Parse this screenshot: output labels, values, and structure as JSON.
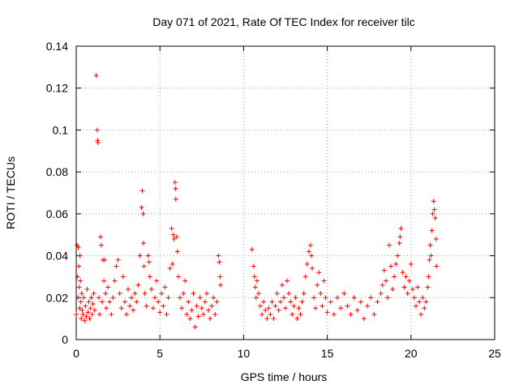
{
  "chart_data": {
    "type": "scatter",
    "title": "Day 071 of 2021, Rate Of TEC Index for receiver tilc",
    "xlabel": "GPS time / hours",
    "ylabel": "ROTI / TECUs",
    "xlim": [
      0,
      25
    ],
    "ylim": [
      0,
      0.14
    ],
    "x_ticks": [
      "0",
      "5",
      "10",
      "15",
      "20",
      "25"
    ],
    "y_ticks": [
      "0",
      "0.02",
      "0.04",
      "0.06",
      "0.08",
      "0.1",
      "0.12",
      "0.14"
    ],
    "x_tick_values": [
      0,
      5,
      10,
      15,
      20,
      25
    ],
    "y_tick_values": [
      0,
      0.02,
      0.04,
      0.06,
      0.08,
      0.1,
      0.12,
      0.14
    ],
    "grid": true,
    "marker": "plus",
    "color": "#ff0000",
    "series": [
      {
        "points": [
          [
            0.0,
            0.012
          ],
          [
            0.05,
            0.045
          ],
          [
            0.08,
            0.03
          ],
          [
            0.1,
            0.02
          ],
          [
            0.12,
            0.044
          ],
          [
            0.15,
            0.035
          ],
          [
            0.18,
            0.025
          ],
          [
            0.2,
            0.015
          ],
          [
            0.22,
            0.04
          ],
          [
            0.25,
            0.028
          ],
          [
            0.28,
            0.018
          ],
          [
            0.3,
            0.01
          ],
          [
            0.33,
            0.022
          ],
          [
            0.36,
            0.014
          ],
          [
            0.4,
            0.012
          ],
          [
            0.45,
            0.02
          ],
          [
            0.5,
            0.009
          ],
          [
            0.55,
            0.016
          ],
          [
            0.6,
            0.011
          ],
          [
            0.65,
            0.024
          ],
          [
            0.7,
            0.013
          ],
          [
            0.75,
            0.018
          ],
          [
            0.8,
            0.01
          ],
          [
            0.85,
            0.015
          ],
          [
            0.9,
            0.02
          ],
          [
            0.95,
            0.012
          ],
          [
            1.0,
            0.017
          ],
          [
            1.05,
            0.022
          ],
          [
            1.1,
            0.014
          ],
          [
            1.2,
            0.126
          ],
          [
            1.25,
            0.1
          ],
          [
            1.28,
            0.095
          ],
          [
            1.3,
            0.094
          ],
          [
            1.35,
            0.02
          ],
          [
            1.4,
            0.012
          ],
          [
            1.45,
            0.049
          ],
          [
            1.5,
            0.045
          ],
          [
            1.55,
            0.018
          ],
          [
            1.6,
            0.038
          ],
          [
            1.65,
            0.028
          ],
          [
            1.7,
            0.038
          ],
          [
            1.75,
            0.022
          ],
          [
            1.8,
            0.015
          ],
          [
            1.9,
            0.025
          ],
          [
            2.0,
            0.018
          ],
          [
            2.1,
            0.012
          ],
          [
            2.2,
            0.02
          ],
          [
            2.3,
            0.028
          ],
          [
            2.4,
            0.035
          ],
          [
            2.5,
            0.038
          ],
          [
            2.6,
            0.022
          ],
          [
            2.7,
            0.015
          ],
          [
            2.8,
            0.03
          ],
          [
            2.9,
            0.018
          ],
          [
            3.0,
            0.012
          ],
          [
            3.1,
            0.024
          ],
          [
            3.2,
            0.016
          ],
          [
            3.3,
            0.02
          ],
          [
            3.4,
            0.014
          ],
          [
            3.5,
            0.022
          ],
          [
            3.6,
            0.018
          ],
          [
            3.7,
            0.026
          ],
          [
            3.8,
            0.04
          ],
          [
            3.9,
            0.063
          ],
          [
            3.95,
            0.071
          ],
          [
            4.0,
            0.06
          ],
          [
            4.02,
            0.046
          ],
          [
            4.05,
            0.035
          ],
          [
            4.1,
            0.022
          ],
          [
            4.2,
            0.016
          ],
          [
            4.3,
            0.04
          ],
          [
            4.35,
            0.037
          ],
          [
            4.4,
            0.03
          ],
          [
            4.5,
            0.024
          ],
          [
            4.6,
            0.015
          ],
          [
            4.7,
            0.02
          ],
          [
            4.8,
            0.028
          ],
          [
            4.9,
            0.018
          ],
          [
            5.0,
            0.013
          ],
          [
            5.1,
            0.022
          ],
          [
            5.2,
            0.016
          ],
          [
            5.3,
            0.025
          ],
          [
            5.4,
            0.012
          ],
          [
            5.5,
            0.02
          ],
          [
            5.6,
            0.034
          ],
          [
            5.7,
            0.053
          ],
          [
            5.75,
            0.036
          ],
          [
            5.8,
            0.05
          ],
          [
            5.85,
            0.048
          ],
          [
            5.9,
            0.075
          ],
          [
            5.93,
            0.072
          ],
          [
            5.95,
            0.067
          ],
          [
            6.0,
            0.049
          ],
          [
            6.05,
            0.042
          ],
          [
            6.1,
            0.03
          ],
          [
            6.2,
            0.02
          ],
          [
            6.3,
            0.015
          ],
          [
            6.4,
            0.022
          ],
          [
            6.5,
            0.028
          ],
          [
            6.6,
            0.012
          ],
          [
            6.7,
            0.018
          ],
          [
            6.8,
            0.01
          ],
          [
            6.9,
            0.014
          ],
          [
            7.0,
            0.022
          ],
          [
            7.1,
            0.006
          ],
          [
            7.2,
            0.016
          ],
          [
            7.3,
            0.011
          ],
          [
            7.4,
            0.02
          ],
          [
            7.5,
            0.015
          ],
          [
            7.6,
            0.012
          ],
          [
            7.7,
            0.018
          ],
          [
            7.8,
            0.022
          ],
          [
            7.9,
            0.014
          ],
          [
            8.0,
            0.01
          ],
          [
            8.1,
            0.016
          ],
          [
            8.2,
            0.02
          ],
          [
            8.3,
            0.012
          ],
          [
            8.4,
            0.018
          ],
          [
            8.5,
            0.04
          ],
          [
            8.55,
            0.037
          ],
          [
            8.6,
            0.03
          ],
          [
            8.62,
            0.026
          ],
          [
            10.5,
            0.043
          ],
          [
            10.6,
            0.035
          ],
          [
            10.65,
            0.03
          ],
          [
            10.7,
            0.025
          ],
          [
            10.75,
            0.02
          ],
          [
            10.8,
            0.028
          ],
          [
            10.9,
            0.022
          ],
          [
            11.0,
            0.016
          ],
          [
            11.1,
            0.012
          ],
          [
            11.2,
            0.018
          ],
          [
            11.3,
            0.014
          ],
          [
            11.4,
            0.01
          ],
          [
            11.5,
            0.015
          ],
          [
            11.6,
            0.012
          ],
          [
            11.7,
            0.018
          ],
          [
            11.8,
            0.01
          ],
          [
            11.9,
            0.016
          ],
          [
            12.0,
            0.022
          ],
          [
            12.1,
            0.014
          ],
          [
            12.2,
            0.018
          ],
          [
            12.3,
            0.026
          ],
          [
            12.4,
            0.02
          ],
          [
            12.5,
            0.015
          ],
          [
            12.6,
            0.028
          ],
          [
            12.7,
            0.022
          ],
          [
            12.8,
            0.018
          ],
          [
            12.9,
            0.012
          ],
          [
            13.0,
            0.016
          ],
          [
            13.1,
            0.02
          ],
          [
            13.2,
            0.01
          ],
          [
            13.3,
            0.015
          ],
          [
            13.4,
            0.012
          ],
          [
            13.5,
            0.018
          ],
          [
            13.6,
            0.022
          ],
          [
            13.7,
            0.03
          ],
          [
            13.8,
            0.036
          ],
          [
            13.9,
            0.042
          ],
          [
            14.0,
            0.045
          ],
          [
            14.05,
            0.04
          ],
          [
            14.1,
            0.034
          ],
          [
            14.2,
            0.02
          ],
          [
            14.3,
            0.015
          ],
          [
            14.4,
            0.026
          ],
          [
            14.5,
            0.032
          ],
          [
            14.6,
            0.022
          ],
          [
            14.7,
            0.016
          ],
          [
            14.8,
            0.028
          ],
          [
            14.9,
            0.02
          ],
          [
            15.0,
            0.013
          ],
          [
            15.2,
            0.018
          ],
          [
            15.4,
            0.012
          ],
          [
            15.6,
            0.02
          ],
          [
            15.8,
            0.015
          ],
          [
            16.0,
            0.022
          ],
          [
            16.2,
            0.016
          ],
          [
            16.4,
            0.012
          ],
          [
            16.6,
            0.02
          ],
          [
            16.8,
            0.014
          ],
          [
            17.0,
            0.018
          ],
          [
            17.2,
            0.01
          ],
          [
            17.4,
            0.016
          ],
          [
            17.6,
            0.02
          ],
          [
            17.8,
            0.012
          ],
          [
            18.0,
            0.018
          ],
          [
            18.2,
            0.022
          ],
          [
            18.3,
            0.026
          ],
          [
            18.4,
            0.033
          ],
          [
            18.5,
            0.028
          ],
          [
            18.6,
            0.02
          ],
          [
            18.7,
            0.045
          ],
          [
            18.8,
            0.035
          ],
          [
            18.9,
            0.024
          ],
          [
            19.0,
            0.03
          ],
          [
            19.1,
            0.036
          ],
          [
            19.2,
            0.04
          ],
          [
            19.3,
            0.046
          ],
          [
            19.35,
            0.049
          ],
          [
            19.4,
            0.053
          ],
          [
            19.5,
            0.032
          ],
          [
            19.6,
            0.025
          ],
          [
            19.7,
            0.03
          ],
          [
            19.8,
            0.022
          ],
          [
            19.9,
            0.028
          ],
          [
            20.0,
            0.036
          ],
          [
            20.1,
            0.024
          ],
          [
            20.2,
            0.02
          ],
          [
            20.3,
            0.016
          ],
          [
            20.4,
            0.025
          ],
          [
            20.5,
            0.018
          ],
          [
            20.6,
            0.012
          ],
          [
            20.7,
            0.02
          ],
          [
            20.8,
            0.015
          ],
          [
            20.9,
            0.018
          ],
          [
            21.0,
            0.025
          ],
          [
            21.05,
            0.03
          ],
          [
            21.1,
            0.038
          ],
          [
            21.15,
            0.045
          ],
          [
            21.2,
            0.04
          ],
          [
            21.25,
            0.052
          ],
          [
            21.3,
            0.06
          ],
          [
            21.35,
            0.066
          ],
          [
            21.4,
            0.062
          ],
          [
            21.45,
            0.058
          ],
          [
            21.5,
            0.048
          ],
          [
            21.52,
            0.035
          ]
        ]
      }
    ]
  }
}
